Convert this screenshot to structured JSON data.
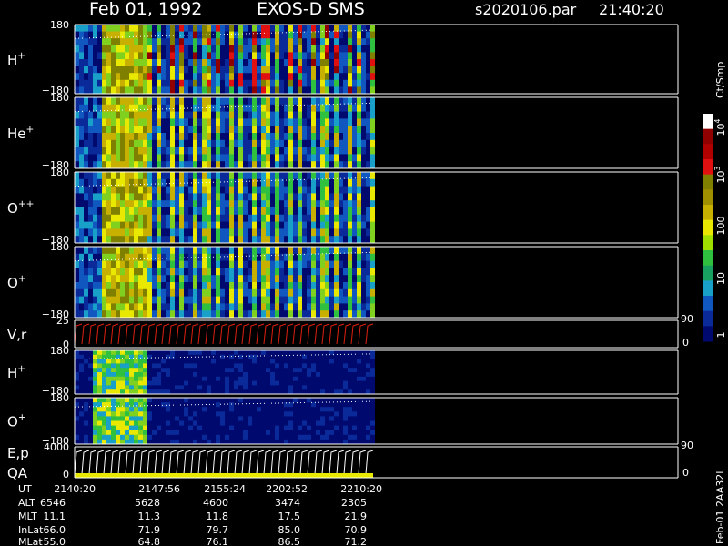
{
  "header": {
    "date": "Feb 01, 1992",
    "instrument": "EXOS-D SMS",
    "file": "s2020106.par",
    "time": "21:40:20"
  },
  "panels": [
    {
      "label": {
        "base": "H",
        "sup": "+"
      },
      "top": "180",
      "bottom": "−180"
    },
    {
      "label": {
        "base": "He",
        "sup": "+"
      },
      "top": "180",
      "bottom": "−180"
    },
    {
      "label": {
        "base": "O",
        "sup": "++"
      },
      "top": "180",
      "bottom": "−180"
    },
    {
      "label": {
        "base": "O",
        "sup": "+"
      },
      "top": "180",
      "bottom": "−180"
    },
    {
      "label": {
        "base": "V,r"
      },
      "top": "25",
      "bottom": "0",
      "right_top": "90",
      "right_bottom": "0"
    },
    {
      "label": {
        "base": "H",
        "sup": "+"
      },
      "top": "180",
      "bottom": "−180"
    },
    {
      "label": {
        "base": "O",
        "sup": "+"
      },
      "top": "180",
      "bottom": "−180"
    },
    {
      "label": {
        "base": "E,p"
      },
      "label2": "QA",
      "top": "4000",
      "bottom": "0",
      "right_top": "90",
      "right_bottom": "0"
    }
  ],
  "colorbar": {
    "unit": "Ct/Smp",
    "labels": [
      {
        "base": "10",
        "sup": "4"
      },
      {
        "base": "10",
        "sup": "3"
      },
      {
        "base": "100"
      },
      {
        "base": "10"
      },
      {
        "base": "1"
      }
    ]
  },
  "table": {
    "rows": [
      [
        "UT",
        "2140:20",
        "2147:56",
        "2155:24",
        "2202:52",
        "2210:20"
      ],
      [
        "ALT",
        "6546",
        "5628",
        "4600",
        "3474",
        "2305"
      ],
      [
        "MLT",
        "11.1",
        "11.3",
        "11.8",
        "17.5",
        "21.9"
      ],
      [
        "InLat",
        "66.0",
        "71.9",
        "79.7",
        "85.0",
        "70.9"
      ],
      [
        "MLat",
        "55.0",
        "64.8",
        "76.1",
        "86.5",
        "71.2"
      ]
    ]
  },
  "footer": "Feb-01 2AA32L"
}
